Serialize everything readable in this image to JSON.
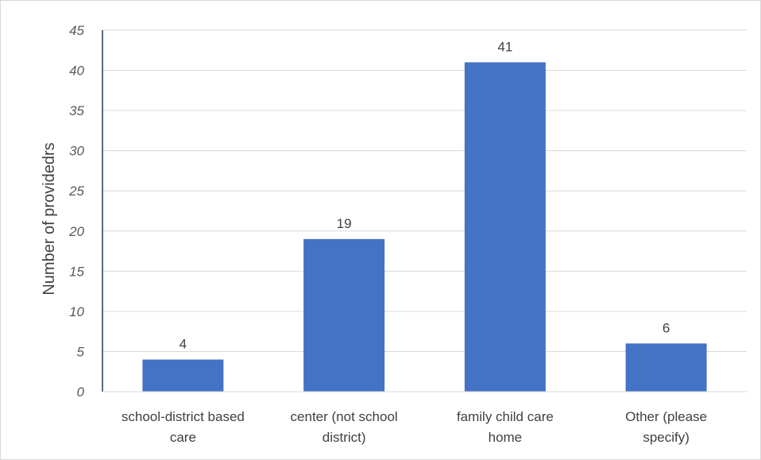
{
  "chart_data": {
    "type": "bar",
    "categories": [
      "school-district based care",
      "center (not school district)",
      "family child care home",
      "Other (please specify)"
    ],
    "category_lines": [
      [
        "school-district based",
        "care"
      ],
      [
        "center (not school",
        "district)"
      ],
      [
        "family child care",
        "home"
      ],
      [
        "Other (please",
        "specify)"
      ]
    ],
    "values": [
      4,
      19,
      41,
      6
    ],
    "data_labels": [
      "4",
      "19",
      "41",
      "6"
    ],
    "title": "",
    "xlabel": "",
    "ylabel": "Number of providedrs",
    "ylim": [
      0,
      45
    ],
    "yticks": [
      0,
      5,
      10,
      15,
      20,
      25,
      30,
      35,
      40,
      45
    ],
    "grid": true,
    "legend": "none",
    "bar_color": "#4472c4",
    "grid_color": "#d9d9d9",
    "axis_color": "#1f3864"
  }
}
